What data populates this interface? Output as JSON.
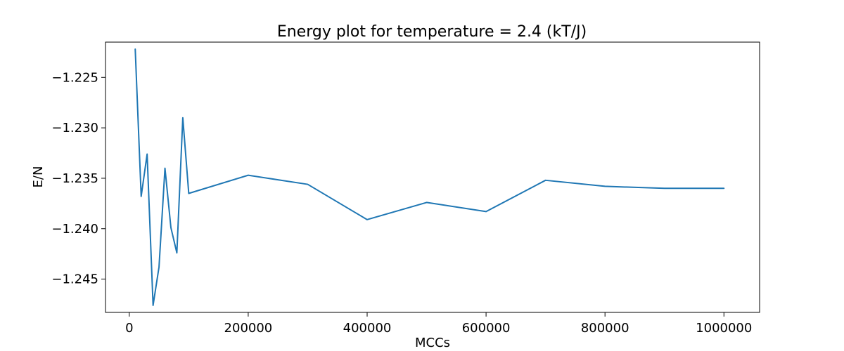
{
  "chart_data": {
    "type": "line",
    "title": "Energy plot for temperature =  2.4 (kT/J)",
    "xlabel": "MCCs",
    "ylabel": "E/N",
    "xlim": [
      -40000,
      1060000
    ],
    "ylim": [
      -1.2483,
      -1.2215
    ],
    "xticks": [
      {
        "value": 0,
        "label": "0"
      },
      {
        "value": 200000,
        "label": "200000"
      },
      {
        "value": 400000,
        "label": "400000"
      },
      {
        "value": 600000,
        "label": "600000"
      },
      {
        "value": 800000,
        "label": "800000"
      },
      {
        "value": 1000000,
        "label": "1000000"
      }
    ],
    "yticks": [
      {
        "value": -1.225,
        "label": "−1.225"
      },
      {
        "value": -1.23,
        "label": "−1.230"
      },
      {
        "value": -1.235,
        "label": "−1.235"
      },
      {
        "value": -1.24,
        "label": "−1.240"
      },
      {
        "value": -1.245,
        "label": "−1.245"
      }
    ],
    "grid": false,
    "series": [
      {
        "color": "#1f77b4",
        "x": [
          10000,
          20000,
          30000,
          40000,
          50000,
          60000,
          70000,
          80000,
          90000,
          100000,
          200000,
          300000,
          400000,
          500000,
          600000,
          700000,
          800000,
          900000,
          1000000
        ],
        "y": [
          -1.2222,
          -1.2368,
          -1.2326,
          -1.2476,
          -1.2438,
          -1.234,
          -1.2399,
          -1.2424,
          -1.229,
          -1.2365,
          -1.2347,
          -1.2356,
          -1.2391,
          -1.2374,
          -1.2383,
          -1.2352,
          -1.2358,
          -1.236,
          -1.236
        ]
      }
    ]
  }
}
